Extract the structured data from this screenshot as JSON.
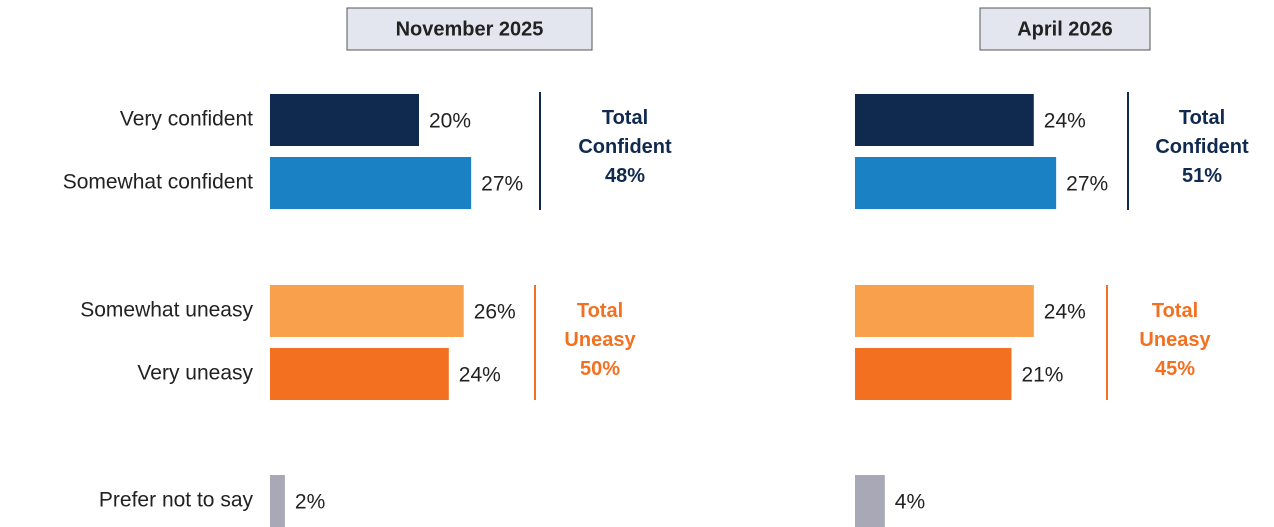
{
  "chart_data": {
    "type": "bar",
    "orientation": "horizontal",
    "categories": [
      "Very confident",
      "Somewhat confident",
      "Somewhat uneasy",
      "Very uneasy",
      "Prefer not to say"
    ],
    "colors": [
      "#10294f",
      "#1a82c4",
      "#f8a04c",
      "#f37021",
      "#a8a8b6"
    ],
    "series": [
      {
        "name": "November 2025",
        "values": [
          20,
          27,
          26,
          24,
          2
        ],
        "value_labels": [
          "20%",
          "27%",
          "26%",
          "24%",
          "2%"
        ]
      },
      {
        "name": "April 2026",
        "values": [
          24,
          27,
          24,
          21,
          4
        ],
        "value_labels": [
          "24%",
          "27%",
          "24%",
          "21%",
          "4%"
        ]
      }
    ],
    "totals": [
      {
        "label": "Total Confident",
        "color": "#10294f",
        "values": [
          48,
          51
        ],
        "value_labels": [
          "48%",
          "51%"
        ]
      },
      {
        "label": "Total Uneasy",
        "color": "#f37021",
        "values": [
          50,
          45
        ],
        "value_labels": [
          "50%",
          "45%"
        ]
      }
    ]
  }
}
